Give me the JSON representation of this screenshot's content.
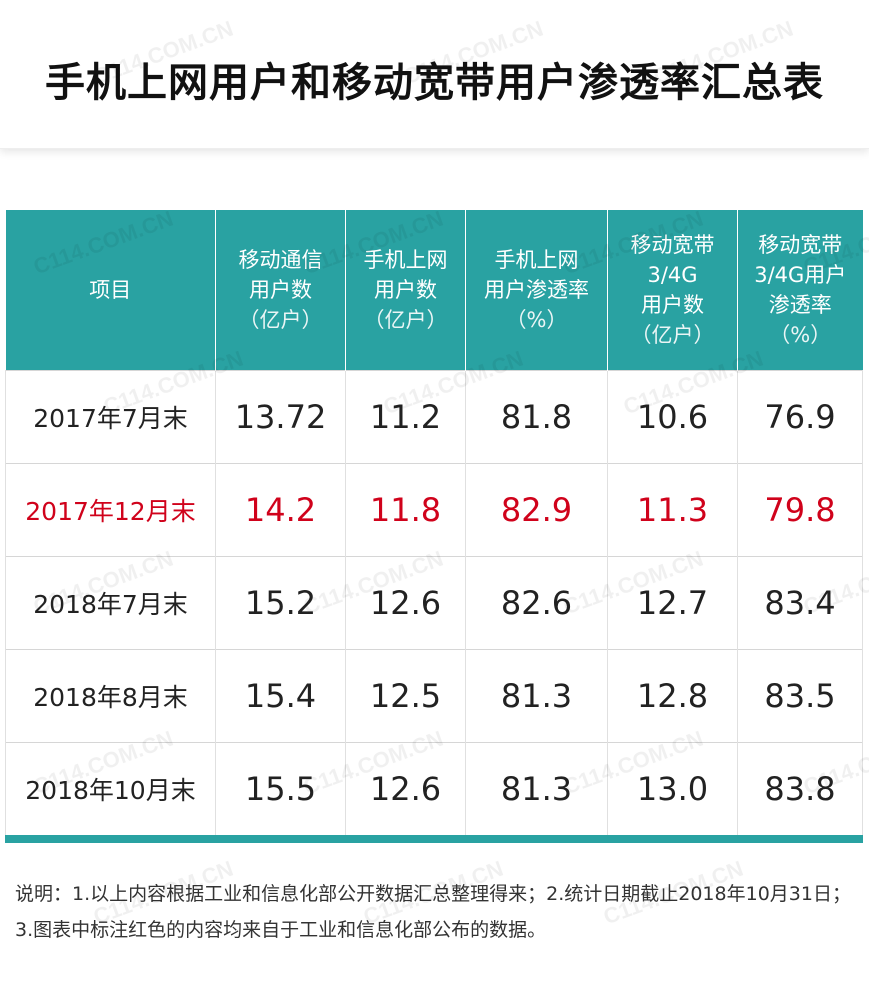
{
  "title": "手机上网用户和移动宽带用户渗透率汇总表",
  "watermark_text": "C114.COM.CN",
  "table": {
    "header_color": "#29a2a2",
    "highlight_color": "#d0021b",
    "headers": [
      {
        "lines": [
          "项目"
        ]
      },
      {
        "lines": [
          "移动通信",
          "用户数",
          "（亿户）"
        ]
      },
      {
        "lines": [
          "手机上网",
          "用户数",
          "（亿户）"
        ]
      },
      {
        "lines": [
          "手机上网",
          "用户渗透率",
          "（%）"
        ]
      },
      {
        "lines": [
          "移动宽带",
          "3/4G",
          "用户数",
          "（亿户）"
        ]
      },
      {
        "lines": [
          "移动宽带",
          "3/4G用户",
          "渗透率",
          "（%）"
        ]
      }
    ],
    "rows": [
      {
        "label": "2017年7月末",
        "highlight": false,
        "values": [
          "13.72",
          "11.2",
          "81.8",
          "10.6",
          "76.9"
        ]
      },
      {
        "label": "2017年12月末",
        "highlight": true,
        "values": [
          "14.2",
          "11.8",
          "82.9",
          "11.3",
          "79.8"
        ]
      },
      {
        "label": "2018年7月末",
        "highlight": false,
        "values": [
          "15.2",
          "12.6",
          "82.6",
          "12.7",
          "83.4"
        ]
      },
      {
        "label": "2018年8月末",
        "highlight": false,
        "values": [
          "15.4",
          "12.5",
          "81.3",
          "12.8",
          "83.5"
        ]
      },
      {
        "label": "2018年10月末",
        "highlight": false,
        "values": [
          "15.5",
          "12.6",
          "81.3",
          "13.0",
          "83.8"
        ]
      }
    ]
  },
  "note": "说明：1.以上内容根据工业和信息化部公开数据汇总整理得来；2.统计日期截止2018年10月31日；3.图表中标注红色的内容均来自于工业和信息化部公布的数据。"
}
